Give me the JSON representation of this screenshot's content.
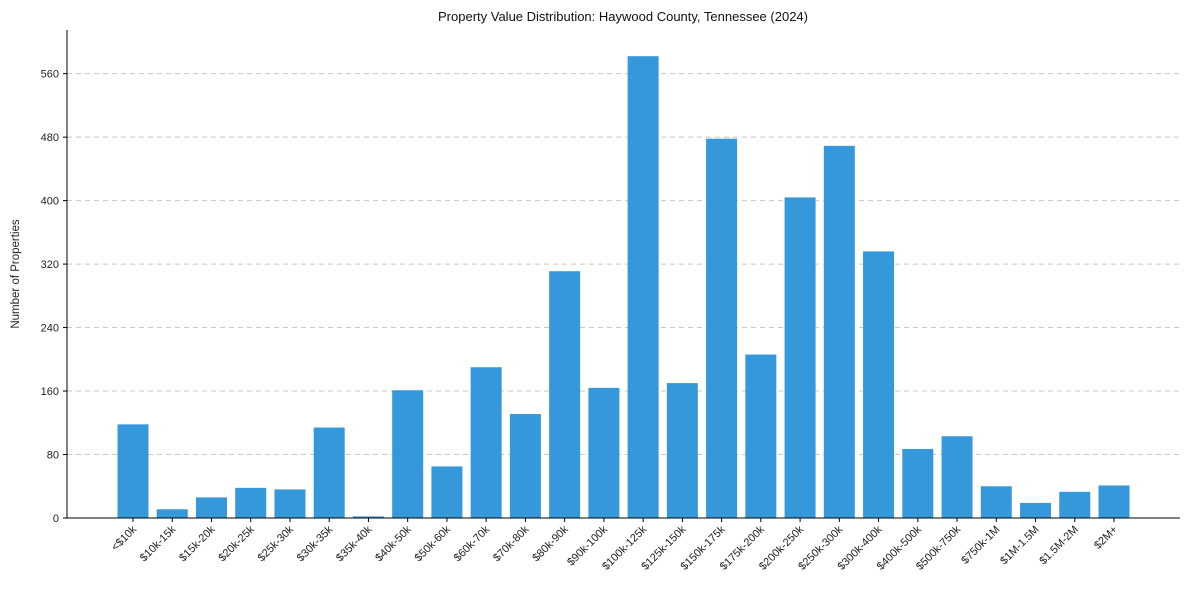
{
  "chart_data": {
    "type": "bar",
    "title": "Property Value Distribution: Haywood County, Tennessee (2024)",
    "xlabel": "",
    "ylabel": "Number of Properties",
    "ylim": [
      0,
      615
    ],
    "yticks": [
      0,
      80,
      160,
      240,
      320,
      400,
      480,
      560
    ],
    "grid": "y-dashed",
    "bar_color": "#3498db",
    "categories": [
      "<$10k",
      "$10k-15k",
      "$15k-20k",
      "$20k-25k",
      "$25k-30k",
      "$30k-35k",
      "$35k-40k",
      "$40k-50k",
      "$50k-60k",
      "$60k-70k",
      "$70k-80k",
      "$80k-90k",
      "$90k-100k",
      "$100k-125k",
      "$125k-150k",
      "$150k-175k",
      "$175k-200k",
      "$200k-250k",
      "$250k-300k",
      "$300k-400k",
      "$400k-500k",
      "$500k-750k",
      "$750k-1M",
      "$1M-1.5M",
      "$1.5M-2M",
      "$2M+"
    ],
    "values": [
      118,
      11,
      26,
      38,
      36,
      114,
      2,
      161,
      65,
      190,
      131,
      311,
      164,
      582,
      170,
      478,
      206,
      404,
      469,
      336,
      87,
      103,
      40,
      19,
      33,
      41
    ]
  }
}
